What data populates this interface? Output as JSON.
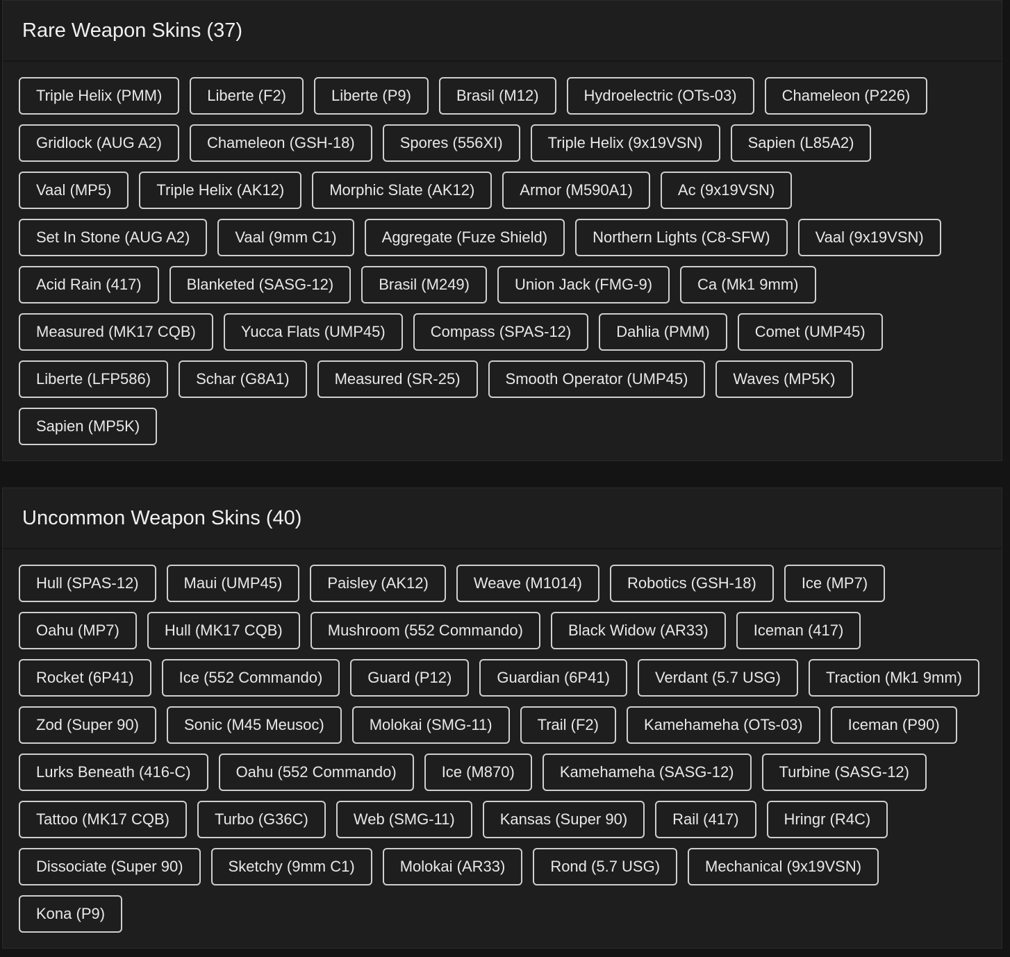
{
  "sections": [
    {
      "title": "Rare Weapon Skins (37)",
      "items": [
        "Triple Helix (PMM)",
        "Liberte (F2)",
        "Liberte (P9)",
        "Brasil (M12)",
        "Hydroelectric (OTs-03)",
        "Chameleon (P226)",
        "Gridlock (AUG A2)",
        "Chameleon (GSH-18)",
        "Spores (556XI)",
        "Triple Helix (9x19VSN)",
        "Sapien (L85A2)",
        "Vaal (MP5)",
        "Triple Helix (AK12)",
        "Morphic Slate (AK12)",
        "Armor (M590A1)",
        "Ac (9x19VSN)",
        "Set In Stone (AUG A2)",
        "Vaal (9mm C1)",
        "Aggregate (Fuze Shield)",
        "Northern Lights (C8-SFW)",
        "Vaal (9x19VSN)",
        "Acid Rain (417)",
        "Blanketed (SASG-12)",
        "Brasil (M249)",
        "Union Jack (FMG-9)",
        "Ca (Mk1 9mm)",
        "Measured (MK17 CQB)",
        "Yucca Flats (UMP45)",
        "Compass (SPAS-12)",
        "Dahlia (PMM)",
        "Comet (UMP45)",
        "Liberte (LFP586)",
        "Schar (G8A1)",
        "Measured (SR-25)",
        "Smooth Operator (UMP45)",
        "Waves (MP5K)",
        "Sapien (MP5K)"
      ]
    },
    {
      "title": "Uncommon Weapon Skins (40)",
      "items": [
        "Hull (SPAS-12)",
        "Maui (UMP45)",
        "Paisley (AK12)",
        "Weave (M1014)",
        "Robotics (GSH-18)",
        "Ice (MP7)",
        "Oahu (MP7)",
        "Hull (MK17 CQB)",
        "Mushroom (552 Commando)",
        "Black Widow (AR33)",
        "Iceman (417)",
        "Rocket (6P41)",
        "Ice (552 Commando)",
        "Guard (P12)",
        "Guardian (6P41)",
        "Verdant (5.7 USG)",
        "Traction (Mk1 9mm)",
        "Zod (Super 90)",
        "Sonic (M45 Meusoc)",
        "Molokai (SMG-11)",
        "Trail (F2)",
        "Kamehameha (OTs-03)",
        "Iceman (P90)",
        "Lurks Beneath (416-C)",
        "Oahu (552 Commando)",
        "Ice (M870)",
        "Kamehameha (SASG-12)",
        "Turbine (SASG-12)",
        "Tattoo (MK17 CQB)",
        "Turbo (G36C)",
        "Web (SMG-11)",
        "Kansas (Super 90)",
        "Rail (417)",
        "Hringr (R4C)",
        "Dissociate (Super 90)",
        "Sketchy (9mm C1)",
        "Molokai (AR33)",
        "Rond (5.7 USG)",
        "Mechanical (9x19VSN)",
        "Kona (P9)"
      ]
    }
  ]
}
